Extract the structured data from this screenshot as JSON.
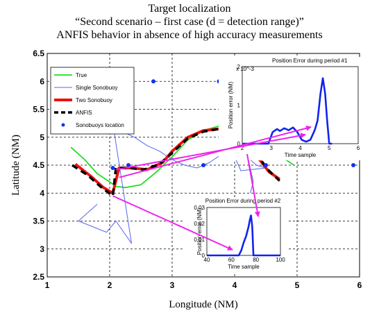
{
  "figure": {
    "title_lines": [
      "Target localization",
      "“Second scenario – first case (d = detection range)”",
      "ANFIS behavior in absence of high accuracy measurements"
    ]
  },
  "colors": {
    "true": "#22dd22",
    "single": "#5566ee",
    "two": "#ee1111",
    "anfis": "#000000",
    "sonobuoy": "#1133ee",
    "arrow": "#ee22ee",
    "error": "#1122ee"
  },
  "chart_data": [
    {
      "type": "line",
      "xlabel": "Longitude (NM)",
      "ylabel": "Latitude (NM)",
      "xlim": [
        1,
        6
      ],
      "ylim": [
        2.5,
        6.5
      ],
      "xticks": [
        "1",
        "2",
        "3",
        "4",
        "5",
        "6"
      ],
      "yticks": [
        "2.5",
        "3",
        "3.5",
        "4",
        "4.5",
        "5",
        "5.5",
        "6",
        "6.5"
      ],
      "grid": true,
      "legend_position": "top-left",
      "legend": [
        "True",
        "Single Sonobuoy",
        "Two Sonobuoy",
        "ANFIS",
        "Sonobuoys location"
      ],
      "series": [
        {
          "name": "True",
          "style": "line",
          "x": [
            1.38,
            1.6,
            1.8,
            2.0,
            2.1,
            2.25,
            2.5,
            2.75,
            3.0,
            3.25,
            3.5,
            3.75,
            4.0,
            4.25,
            4.5,
            4.75,
            4.95
          ],
          "y": [
            4.82,
            4.6,
            4.35,
            4.2,
            4.12,
            4.1,
            4.15,
            4.38,
            4.65,
            4.95,
            5.12,
            5.2,
            5.12,
            5.0,
            4.8,
            4.65,
            4.5
          ]
        },
        {
          "name": "Single Sonobuoy",
          "style": "line",
          "x": [
            1.8,
            1.65,
            1.5,
            1.95,
            2.1,
            2.35,
            2.05,
            2.2,
            2.4,
            2.6,
            2.8,
            3.0,
            3.2,
            3.4,
            3.6,
            3.8,
            4.0,
            4.2,
            4.35,
            4.25,
            4.1,
            4.25,
            4.35,
            4.5,
            4.1,
            3.9,
            4.2,
            4.3,
            4.25
          ],
          "y": [
            3.8,
            3.65,
            3.5,
            3.3,
            3.5,
            3.1,
            5.25,
            5.1,
            5.0,
            4.85,
            4.75,
            4.6,
            4.5,
            4.45,
            4.55,
            4.7,
            4.9,
            5.0,
            5.1,
            5.0,
            4.75,
            4.6,
            4.5,
            4.45,
            4.4,
            4.9,
            4.7,
            4.2,
            4.0
          ]
        },
        {
          "name": "Two Sonobuoy",
          "style": "line",
          "x": [
            1.45,
            1.7,
            1.9,
            2.05,
            2.15,
            2.35,
            2.6,
            2.85,
            3.0,
            3.25,
            3.5,
            3.75,
            4.0,
            4.2,
            4.4,
            4.55,
            4.72
          ],
          "y": [
            4.52,
            4.3,
            4.1,
            4.0,
            4.45,
            4.45,
            4.42,
            4.55,
            4.75,
            5.0,
            5.12,
            5.15,
            5.05,
            4.85,
            4.6,
            4.38,
            4.25
          ]
        },
        {
          "name": "ANFIS",
          "style": "dashed",
          "x": [
            1.4,
            1.65,
            1.85,
            2.05,
            2.1,
            2.3,
            2.55,
            2.8,
            3.0,
            3.25,
            3.5,
            3.75,
            4.0,
            4.2,
            4.4,
            4.55,
            4.72
          ],
          "y": [
            4.5,
            4.32,
            4.12,
            3.95,
            4.45,
            4.45,
            4.42,
            4.52,
            4.72,
            4.98,
            5.1,
            5.15,
            5.05,
            4.85,
            4.62,
            4.4,
            4.22
          ]
        },
        {
          "name": "Sonobuoys location",
          "style": "markers",
          "x": [
            2.05,
            2.3,
            2.7,
            3.5,
            3.75,
            4.5,
            5.0,
            5.9
          ],
          "y": [
            4.45,
            4.5,
            6.0,
            4.5,
            6.0,
            4.5,
            6.0,
            4.5
          ]
        }
      ]
    },
    {
      "type": "line",
      "title": "Position Error during period #1",
      "xlabel": "Time sample",
      "ylabel": "Position error (NM)",
      "xlim": [
        2,
        6
      ],
      "ylim": [
        0,
        2
      ],
      "xticks": [
        "2",
        "3",
        "4",
        "5",
        "6"
      ],
      "yticks": [
        "0",
        "1",
        "2"
      ],
      "exponent": "x 10^-3",
      "series": [
        {
          "x": [
            2.0,
            2.9,
            3.05,
            3.2,
            3.3,
            3.45,
            3.6,
            3.75,
            3.9,
            4.05,
            4.2,
            4.35,
            4.5,
            4.6,
            4.7,
            4.78,
            4.86,
            4.93,
            5.0,
            5.1
          ],
          "y": [
            0.0,
            0.0,
            0.3,
            0.38,
            0.33,
            0.4,
            0.35,
            0.42,
            0.3,
            0.1,
            0.05,
            0.1,
            0.35,
            0.6,
            1.3,
            1.7,
            1.3,
            0.6,
            0.0,
            0.0
          ]
        }
      ]
    },
    {
      "type": "line",
      "title": "Position Error during period #2",
      "xlabel": "Time sample",
      "ylabel": "Position error (NM)",
      "xlim": [
        40,
        100
      ],
      "ylim": [
        0,
        0.03
      ],
      "xticks": [
        "40",
        "60",
        "80",
        "100"
      ],
      "yticks": [
        "0",
        "0.01",
        "0.02",
        "0.03"
      ],
      "series": [
        {
          "x": [
            40,
            66,
            68,
            70,
            72,
            74,
            75,
            76,
            77,
            78,
            80,
            100
          ],
          "y": [
            0.0,
            0.0,
            0.003,
            0.008,
            0.012,
            0.018,
            0.022,
            0.025,
            0.018,
            0.0,
            0.0,
            0.0
          ]
        }
      ]
    }
  ]
}
